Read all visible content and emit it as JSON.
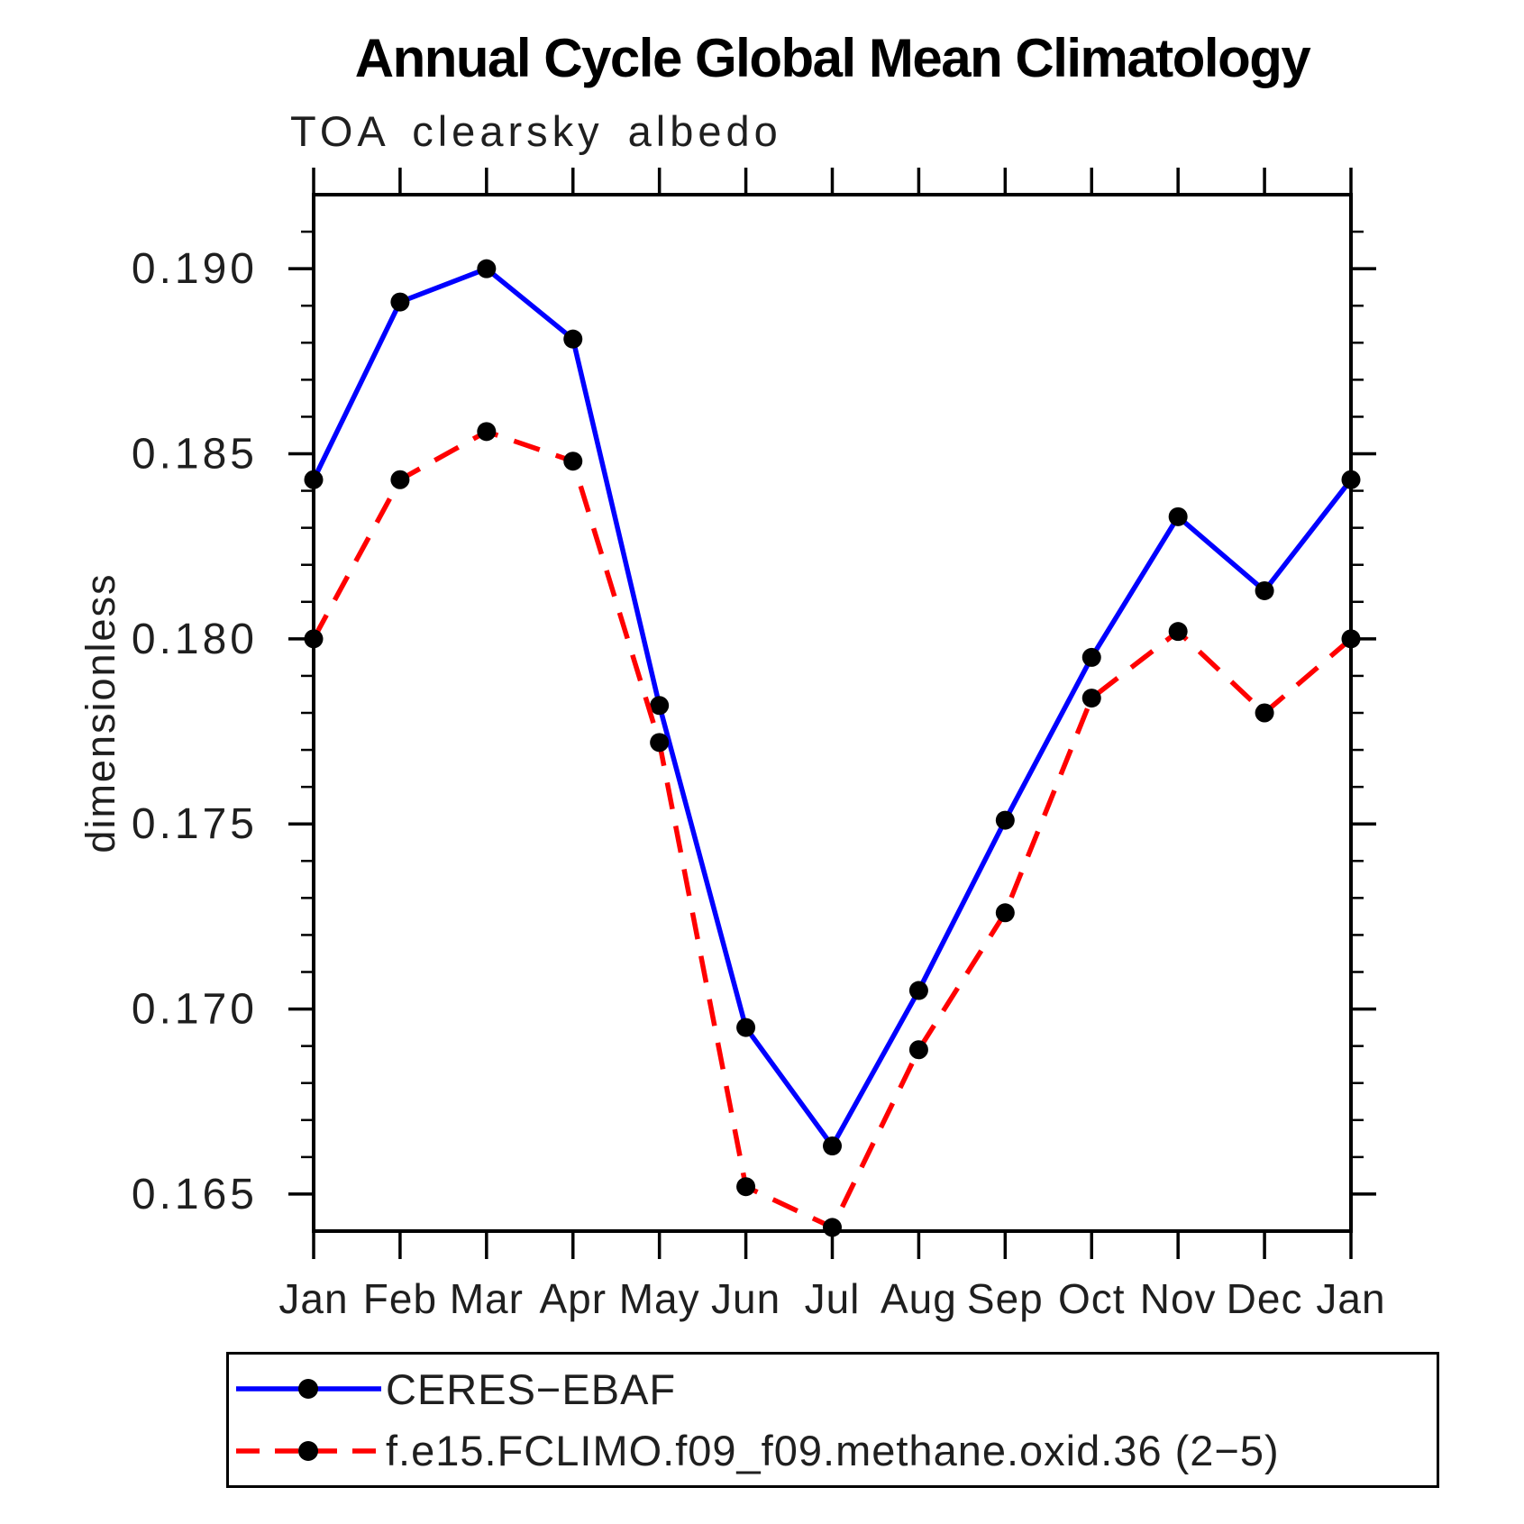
{
  "page": {
    "background": "#ffffff"
  },
  "chart_data": {
    "type": "line",
    "title": "Annual Cycle Global Mean Climatology",
    "subtitle": "TOA clearsky albedo",
    "ylabel": "dimensionless",
    "xlabel": "",
    "categories": [
      "Jan",
      "Feb",
      "Mar",
      "Apr",
      "May",
      "Jun",
      "Jul",
      "Aug",
      "Sep",
      "Oct",
      "Nov",
      "Dec",
      "Jan"
    ],
    "series": [
      {
        "name": "CERES−EBAF",
        "color": "#0000ff",
        "line_style": "solid",
        "marker": "circle",
        "marker_color": "#000000",
        "values": [
          0.1843,
          0.1891,
          0.19,
          0.1881,
          0.1782,
          0.1695,
          0.1663,
          0.1705,
          0.1751,
          0.1795,
          0.1833,
          0.1813,
          0.1843
        ]
      },
      {
        "name": "f.e15.FCLIMO.f09_f09.methane.oxid.36 (2−5)",
        "color": "#ff0000",
        "line_style": "dashed",
        "marker": "circle",
        "marker_color": "#000000",
        "values": [
          0.18,
          0.1843,
          0.1856,
          0.1848,
          0.1772,
          0.1652,
          0.1641,
          0.1689,
          0.1726,
          0.1784,
          0.1802,
          0.178,
          0.18
        ]
      }
    ],
    "ylim": [
      0.164,
      0.192
    ],
    "yticks_major": [
      0.165,
      0.17,
      0.175,
      0.18,
      0.185,
      0.19
    ],
    "ytick_labels": [
      "0.165",
      "0.170",
      "0.175",
      "0.180",
      "0.185",
      "0.190"
    ],
    "y_minor_step": 0.001,
    "grid": false,
    "legend_position": "bottom-box",
    "axis_color": "#000000",
    "text_color": "#1f1f1f"
  }
}
